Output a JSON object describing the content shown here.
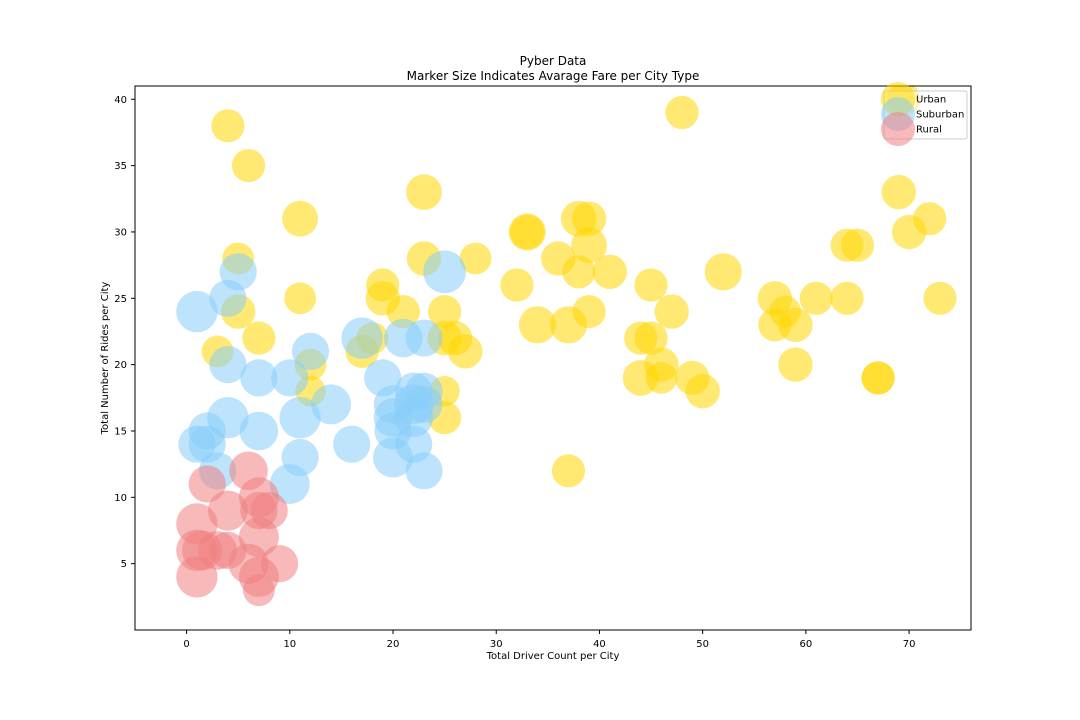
{
  "chart_data": {
    "type": "scatter",
    "title": "Pyber Data",
    "subtitle": "Marker Size Indicates Avarage Fare per City Type",
    "xlabel": "Total Driver Count per City",
    "ylabel": "Total Number of Rides per City",
    "xlim": [
      -5,
      76
    ],
    "ylim": [
      0,
      41
    ],
    "xticks": [
      0,
      10,
      20,
      30,
      40,
      50,
      60,
      70
    ],
    "yticks": [
      5,
      10,
      15,
      20,
      25,
      30,
      35,
      40
    ],
    "legend_position": "top-right",
    "series": [
      {
        "name": "Urban",
        "color": "#FFD700",
        "points": [
          [
            4,
            38
          ],
          [
            6,
            35
          ],
          [
            11,
            31
          ],
          [
            23,
            33
          ],
          [
            48,
            39
          ],
          [
            69,
            33
          ],
          [
            72,
            31
          ],
          [
            70,
            30
          ],
          [
            69.5,
            40
          ],
          [
            5,
            28
          ],
          [
            11,
            25
          ],
          [
            5,
            24
          ],
          [
            3,
            21
          ],
          [
            7,
            22
          ],
          [
            12,
            20
          ],
          [
            12,
            18
          ],
          [
            19,
            26
          ],
          [
            19,
            25
          ],
          [
            21,
            24
          ],
          [
            18,
            22
          ],
          [
            17,
            21
          ],
          [
            23,
            28
          ],
          [
            28,
            28
          ],
          [
            25,
            24
          ],
          [
            25,
            22
          ],
          [
            26,
            22
          ],
          [
            27,
            21
          ],
          [
            25,
            18
          ],
          [
            25,
            16
          ],
          [
            32,
            26
          ],
          [
            33,
            30
          ],
          [
            33,
            30
          ],
          [
            34,
            23
          ],
          [
            36,
            28
          ],
          [
            37,
            23
          ],
          [
            38,
            27
          ],
          [
            38,
            31
          ],
          [
            39,
            31
          ],
          [
            39,
            29
          ],
          [
            39,
            24
          ],
          [
            41,
            27
          ],
          [
            45,
            26
          ],
          [
            44,
            22
          ],
          [
            45,
            22
          ],
          [
            44,
            19
          ],
          [
            46,
            20
          ],
          [
            46,
            19
          ],
          [
            47,
            24
          ],
          [
            49,
            19
          ],
          [
            50,
            18
          ],
          [
            52,
            27
          ],
          [
            57,
            25
          ],
          [
            57,
            23
          ],
          [
            58,
            24
          ],
          [
            59,
            23
          ],
          [
            59,
            20
          ],
          [
            61,
            25
          ],
          [
            64,
            29
          ],
          [
            64,
            25
          ],
          [
            65,
            29
          ],
          [
            67,
            19
          ],
          [
            67,
            19
          ],
          [
            73,
            25
          ],
          [
            37,
            12
          ]
        ],
        "sizes": [
          24,
          24,
          26,
          26,
          24,
          25,
          24,
          25,
          24,
          23,
          23,
          25,
          23,
          24,
          23,
          22,
          24,
          25,
          24,
          23,
          24,
          25,
          23,
          24,
          25,
          25,
          25,
          22,
          24,
          24,
          25,
          27,
          27,
          25,
          27,
          24,
          26,
          25,
          26,
          24,
          25,
          24,
          24,
          24,
          26,
          25,
          23,
          25,
          25,
          25,
          27,
          25,
          24,
          23,
          25,
          25,
          24,
          24,
          24,
          24,
          24,
          24,
          24,
          24
        ]
      },
      {
        "name": "Suburban",
        "color": "#87CEFA",
        "points": [
          [
            1,
            24
          ],
          [
            4,
            25
          ],
          [
            5,
            27
          ],
          [
            4,
            20
          ],
          [
            7,
            19
          ],
          [
            4,
            16
          ],
          [
            2,
            15
          ],
          [
            7,
            15
          ],
          [
            1,
            14
          ],
          [
            2,
            14
          ],
          [
            3,
            12
          ],
          [
            10,
            19
          ],
          [
            12,
            21
          ],
          [
            11,
            16
          ],
          [
            14,
            17
          ],
          [
            11,
            13
          ],
          [
            10,
            11
          ],
          [
            16,
            14
          ],
          [
            17,
            22
          ],
          [
            19,
            19
          ],
          [
            20,
            17
          ],
          [
            20,
            16
          ],
          [
            20,
            15
          ],
          [
            20,
            13
          ],
          [
            21,
            22
          ],
          [
            22,
            18
          ],
          [
            22,
            17
          ],
          [
            23,
            18
          ],
          [
            23,
            17
          ],
          [
            23,
            22
          ],
          [
            25,
            27
          ],
          [
            22,
            14
          ],
          [
            23,
            12
          ],
          [
            22,
            16
          ]
        ],
        "sizes": [
          30,
          27,
          27,
          27,
          27,
          30,
          27,
          28,
          27,
          27,
          27,
          27,
          27,
          30,
          29,
          27,
          29,
          27,
          30,
          27,
          28,
          28,
          27,
          29,
          28,
          27,
          29,
          27,
          27,
          27,
          31,
          27,
          27,
          28
        ]
      },
      {
        "name": "Rural",
        "color": "#F08080",
        "points": [
          [
            1,
            8
          ],
          [
            1,
            6
          ],
          [
            1,
            4
          ],
          [
            1.5,
            6
          ],
          [
            2,
            11
          ],
          [
            3,
            6
          ],
          [
            4,
            9
          ],
          [
            4,
            6
          ],
          [
            6,
            12
          ],
          [
            6,
            5
          ],
          [
            7,
            10
          ],
          [
            7,
            9
          ],
          [
            7,
            7
          ],
          [
            7,
            4
          ],
          [
            7,
            3
          ],
          [
            8,
            9
          ],
          [
            9,
            5
          ]
        ],
        "sizes": [
          30,
          30,
          30,
          29,
          27,
          28,
          29,
          27,
          28,
          29,
          29,
          27,
          29,
          29,
          23,
          27,
          27
        ]
      }
    ]
  }
}
